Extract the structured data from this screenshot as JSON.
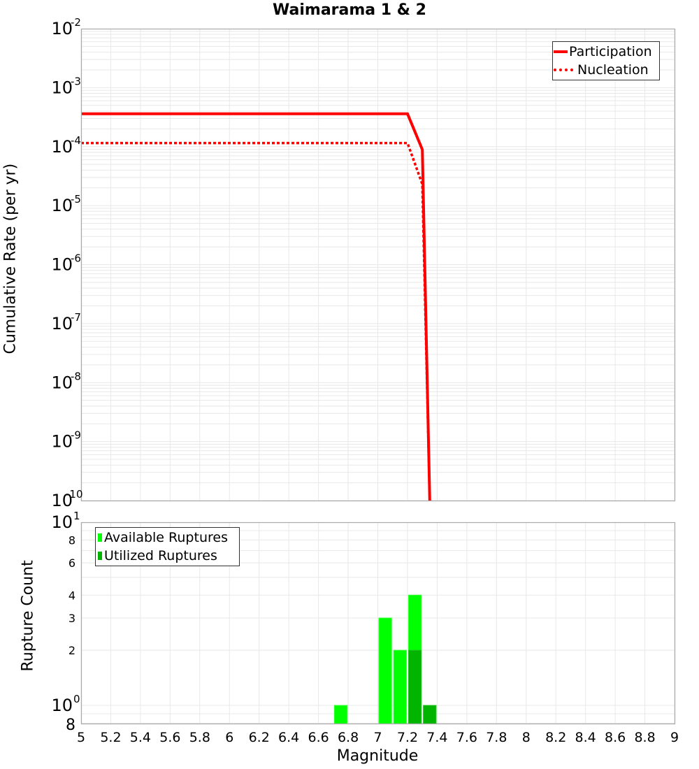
{
  "chart_data": [
    {
      "type": "line",
      "title": "Waimarama 1 & 2",
      "xlabel": "Magnitude",
      "ylabel": "Cumulative Rate (per yr)",
      "xlim": [
        5,
        9
      ],
      "ylim": [
        1e-10,
        0.01
      ],
      "yscale": "log",
      "grid": true,
      "legend_position": "upper right",
      "y_tick_labels": [
        "10^-2",
        "10^-3",
        "10^-4",
        "10^-5",
        "10^-6",
        "10^-7",
        "10^-8",
        "10^-9",
        "10^-10"
      ],
      "series": [
        {
          "name": "Participation",
          "style": "solid",
          "color": "#ff0000",
          "x": [
            5.0,
            7.2,
            7.3,
            7.35
          ],
          "y": [
            0.00036,
            0.00036,
            8.9e-05,
            1e-10
          ]
        },
        {
          "name": "Nucleation",
          "style": "dotted",
          "color": "#ff0000",
          "x": [
            5.0,
            7.2,
            7.3,
            7.35
          ],
          "y": [
            0.000115,
            0.000115,
            2.3e-05,
            1e-10
          ]
        }
      ]
    },
    {
      "type": "bar",
      "title": "",
      "xlabel": "Magnitude",
      "ylabel": "Rupture Count",
      "xlim": [
        5,
        9
      ],
      "ylim": [
        0.8,
        10
      ],
      "yscale": "log",
      "grid": true,
      "legend_position": "upper left",
      "x_tick_labels": [
        "5",
        "5.2",
        "5.4",
        "5.6",
        "5.8",
        "6",
        "6.2",
        "6.4",
        "6.6",
        "6.8",
        "7",
        "7.2",
        "7.4",
        "7.6",
        "7.8",
        "8",
        "8.2",
        "8.4",
        "8.6",
        "8.8",
        "9"
      ],
      "y_tick_labels": [
        "10^1",
        "8",
        "6",
        "4",
        "3",
        "2",
        "10^0",
        "8"
      ],
      "bin_width": 0.1,
      "categories": [
        6.75,
        7.05,
        7.15,
        7.25,
        7.35
      ],
      "series": [
        {
          "name": "Available Ruptures",
          "color": "#00ff00",
          "values": [
            1,
            3,
            2,
            4,
            1
          ]
        },
        {
          "name": "Utilized Ruptures",
          "color": "#00b400",
          "values": [
            0,
            0,
            0,
            2,
            1
          ]
        }
      ]
    }
  ],
  "title": "Waimarama 1 & 2",
  "top_plot": {
    "ylabel": "Cumulative Rate (per yr)",
    "legend": {
      "participation": "Participation",
      "nucleation": "Nucleation"
    },
    "yticks": [
      {
        "base": "10",
        "exp": "-2"
      },
      {
        "base": "10",
        "exp": "-3"
      },
      {
        "base": "10",
        "exp": "-4"
      },
      {
        "base": "10",
        "exp": "-5"
      },
      {
        "base": "10",
        "exp": "-6"
      },
      {
        "base": "10",
        "exp": "-7"
      },
      {
        "base": "10",
        "exp": "-8"
      },
      {
        "base": "10",
        "exp": "-9"
      },
      {
        "base": "10",
        "exp": "-10"
      }
    ]
  },
  "bottom_plot": {
    "ylabel": "Rupture Count",
    "legend": {
      "available": "Available Ruptures",
      "utilized": "Utilized Ruptures"
    },
    "yticks_major": [
      {
        "base": "10",
        "exp": "1"
      },
      {
        "base": "10",
        "exp": "0"
      }
    ],
    "yticks_minor": [
      "8",
      "6",
      "4",
      "3",
      "2",
      "8"
    ]
  },
  "xlabel": "Magnitude",
  "xticks": [
    "5",
    "5.2",
    "5.4",
    "5.6",
    "5.8",
    "6",
    "6.2",
    "6.4",
    "6.6",
    "6.8",
    "7",
    "7.2",
    "7.4",
    "7.6",
    "7.8",
    "8",
    "8.2",
    "8.4",
    "8.6",
    "8.8",
    "9"
  ],
  "colors": {
    "line": "#ff0000",
    "available": "#00ff00",
    "utilized": "#00b400",
    "grid": "#e8e8e8",
    "frame": "#aaaaaa"
  }
}
